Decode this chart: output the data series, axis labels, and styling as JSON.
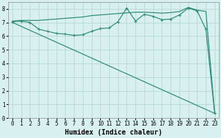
{
  "line1_x": [
    0,
    1,
    2,
    3,
    4,
    5,
    6,
    7,
    8,
    9,
    10,
    11,
    12,
    13,
    14,
    15,
    16,
    17,
    18,
    19,
    20,
    21,
    22,
    23
  ],
  "line1_y": [
    7.1,
    7.15,
    7.15,
    7.15,
    7.2,
    7.25,
    7.3,
    7.35,
    7.4,
    7.5,
    7.55,
    7.6,
    7.65,
    7.7,
    7.75,
    7.75,
    7.72,
    7.68,
    7.72,
    7.8,
    8.1,
    7.9,
    7.8,
    0.35
  ],
  "line2_x": [
    0,
    1,
    2,
    3,
    4,
    5,
    6,
    7,
    8,
    9,
    10,
    11,
    12,
    13,
    14,
    15,
    16,
    17,
    18,
    19,
    20,
    21,
    22,
    23
  ],
  "line2_y": [
    7.05,
    7.1,
    7.0,
    6.5,
    6.35,
    6.2,
    6.15,
    6.05,
    6.1,
    6.35,
    6.55,
    6.6,
    7.05,
    8.05,
    7.1,
    7.6,
    7.45,
    7.2,
    7.25,
    7.55,
    8.05,
    7.85,
    6.5,
    0.35
  ],
  "line3_x": [
    0,
    23
  ],
  "line3_y": [
    7.0,
    0.35
  ],
  "line_color": "#2e8b74",
  "bg_color": "#d8f0f0",
  "grid_color": "#b8dada",
  "xlabel": "Humidex (Indice chaleur)",
  "xlim": [
    -0.5,
    23.5
  ],
  "ylim": [
    0,
    8.5
  ],
  "xticks": [
    0,
    1,
    2,
    3,
    4,
    5,
    6,
    7,
    8,
    9,
    10,
    11,
    12,
    13,
    14,
    15,
    16,
    17,
    18,
    19,
    20,
    21,
    22,
    23
  ],
  "yticks": [
    0,
    1,
    2,
    3,
    4,
    5,
    6,
    7,
    8
  ],
  "xlabel_fontsize": 7,
  "tick_fontsize": 5.5
}
